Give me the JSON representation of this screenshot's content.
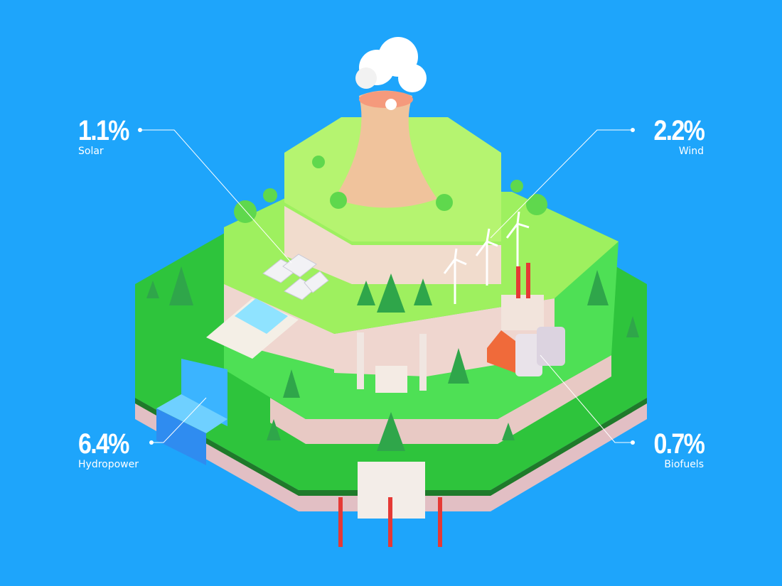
{
  "colors": {
    "background": "#1ea5fb",
    "grass": "#3fd04a",
    "grass_light": "#b8f56a",
    "soil": "#e8c9c4",
    "water": "#6fd6ff"
  },
  "stats": [
    {
      "value": "1.1%",
      "label": "Solar"
    },
    {
      "value": "2.2%",
      "label": "Wind"
    },
    {
      "value": "6.4%",
      "label": "Hydropower"
    },
    {
      "value": "0.7%",
      "label": "Biofuels"
    }
  ]
}
